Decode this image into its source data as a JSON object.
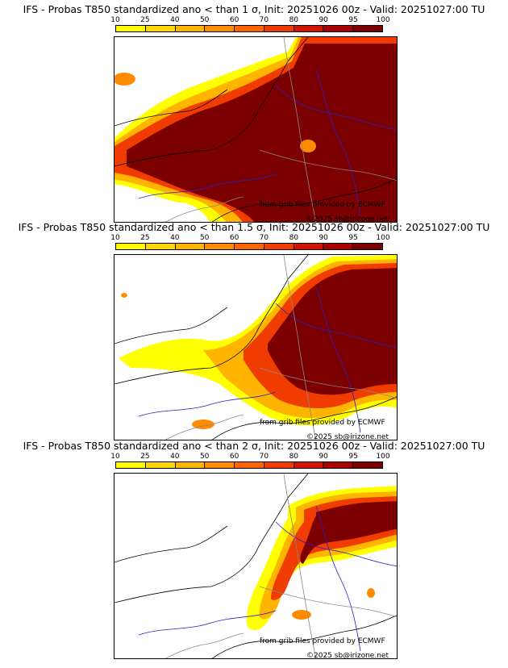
{
  "legend": {
    "ticks": [
      "10",
      "25",
      "40",
      "50",
      "60",
      "70",
      "80",
      "90",
      "95",
      "100"
    ],
    "colors": [
      "#ffff00",
      "#ffd700",
      "#ffb400",
      "#ff8c00",
      "#ff6400",
      "#f03c00",
      "#d21400",
      "#aa0000",
      "#7d0000"
    ]
  },
  "colors": {
    "land": "#ffffff",
    "coast": "#000000",
    "rivers": "#2222cc",
    "borders": "#888888"
  },
  "panels": [
    {
      "title": "IFS - Probas T850  standardized ano < than 1 σ, Init: 20251026 00z - Valid: 20251027:00 TU",
      "threshold_sigma": 1,
      "credit_source": "from grib files provided by ECMWF",
      "credit_copyright": "©2025 sb@irizone.net"
    },
    {
      "title": "IFS - Probas T850  standardized ano < than 1.5 σ, Init: 20251026 00z - Valid: 20251027:00 TU",
      "threshold_sigma": 1.5,
      "credit_source": "from grib files provided by ECMWF",
      "credit_copyright": "©2025 sb@irizone.net"
    },
    {
      "title": "IFS - Probas T850  standardized ano < than 2 σ, Init: 20251026 00z - Valid: 20251027:00 TU",
      "threshold_sigma": 2,
      "credit_source": "from grib files provided by ECMWF",
      "credit_copyright": "©2025 sb@irizone.net"
    }
  ]
}
